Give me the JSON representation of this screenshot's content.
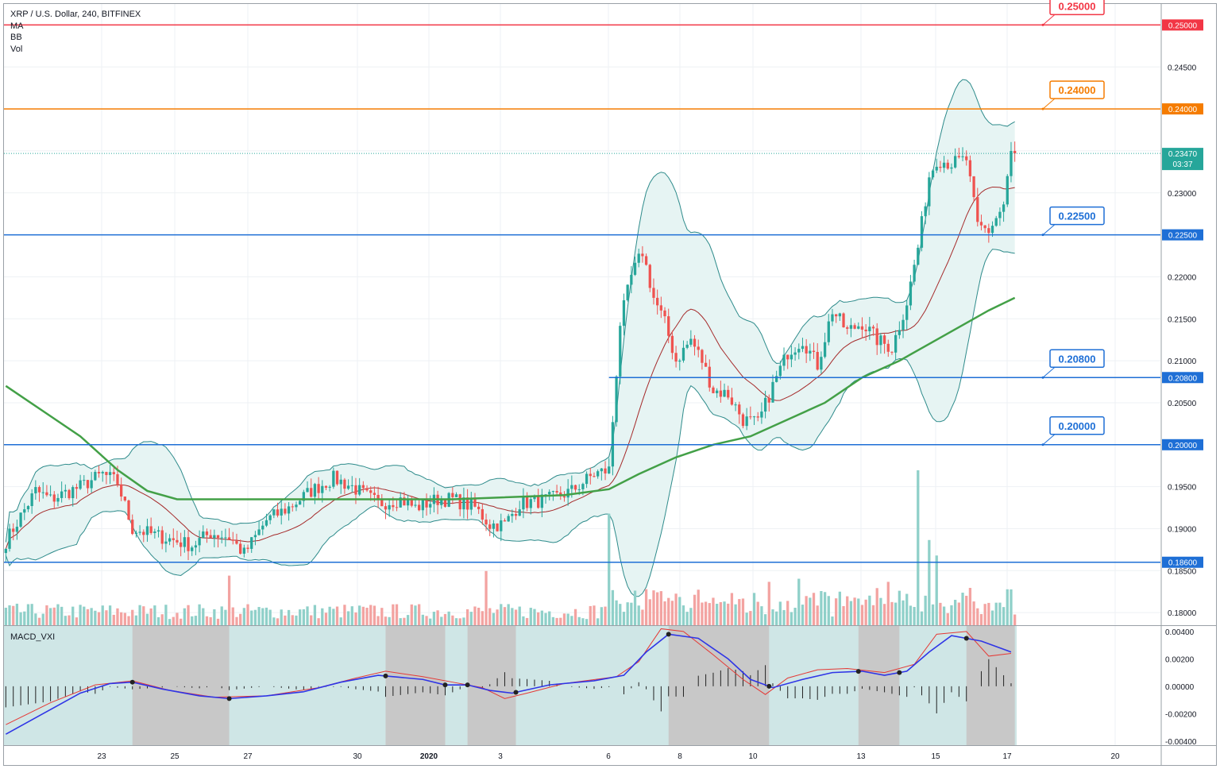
{
  "legend": {
    "symbol": "XRP / U.S. Dollar, 240, BITFINEX",
    "indicators": [
      "MA",
      "BB",
      "Vol"
    ]
  },
  "macd_label": "MACD_VXI",
  "colors": {
    "up": "#26a69a",
    "down": "#ef5350",
    "ma": "#43a047",
    "bb_fill": "#e6f4f3",
    "bb_line": "#2e8b8b",
    "bb_mid": "#a52a2a",
    "red_level": "#f23645",
    "orange_level": "#f57c00",
    "blue_level": "#1e6fd6",
    "macd_line": "#2f35e6",
    "signal_line": "#e53935",
    "macd_bg_teal": "#cfe6e6",
    "macd_bg_gray": "#c8c8c8"
  },
  "chart_data": {
    "type": "candlestick",
    "symbol": "XRP / U.S. Dollar",
    "timeframe": "240",
    "exchange": "BITFINEX",
    "x_tick_labels": [
      "23",
      "25",
      "27",
      "30",
      "2020",
      "3",
      "6",
      "8",
      "10",
      "13",
      "15",
      "17",
      "20"
    ],
    "price_axis_labels": [
      "0.24500",
      "0.23000",
      "0.22000",
      "0.21500",
      "0.21000",
      "0.20500",
      "0.19500",
      "0.19000",
      "0.18500",
      "0.18000"
    ],
    "ylim": [
      0.1785,
      0.2525
    ],
    "horizontal_levels": [
      {
        "value": 0.25,
        "label": "0.25000",
        "axis_label": "0.25000",
        "color": "red"
      },
      {
        "value": 0.24,
        "label": "0.24000",
        "axis_label": "0.24000",
        "color": "orange"
      },
      {
        "value": 0.225,
        "label": "0.22500",
        "axis_label": "0.22500",
        "color": "blue"
      },
      {
        "value": 0.208,
        "label": "0.20800",
        "axis_label": "0.20800",
        "color": "blue"
      },
      {
        "value": 0.2,
        "label": "0.20000",
        "axis_label": "0.20000",
        "color": "blue"
      },
      {
        "value": 0.186,
        "label": "",
        "axis_label": "0.18600",
        "color": "blue"
      }
    ],
    "last_price": {
      "value": "0.23470",
      "countdown": "03:37"
    },
    "price_keypoints": [
      [
        0,
        0.1885
      ],
      [
        8,
        0.1945
      ],
      [
        12,
        0.1935
      ],
      [
        20,
        0.195
      ],
      [
        26,
        0.1965
      ],
      [
        30,
        0.1955
      ],
      [
        34,
        0.19
      ],
      [
        42,
        0.189
      ],
      [
        50,
        0.188
      ],
      [
        55,
        0.1895
      ],
      [
        60,
        0.189
      ],
      [
        64,
        0.187
      ],
      [
        70,
        0.191
      ],
      [
        76,
        0.1925
      ],
      [
        82,
        0.1945
      ],
      [
        88,
        0.196
      ],
      [
        93,
        0.195
      ],
      [
        100,
        0.193
      ],
      [
        106,
        0.1935
      ],
      [
        110,
        0.1925
      ],
      [
        116,
        0.1935
      ],
      [
        120,
        0.1935
      ],
      [
        126,
        0.1925
      ],
      [
        130,
        0.1905
      ],
      [
        134,
        0.1905
      ],
      [
        138,
        0.193
      ],
      [
        146,
        0.1935
      ],
      [
        152,
        0.1945
      ],
      [
        158,
        0.1965
      ],
      [
        162,
        0.197
      ],
      [
        165,
        0.2145
      ],
      [
        168,
        0.22
      ],
      [
        171,
        0.223
      ],
      [
        174,
        0.2175
      ],
      [
        177,
        0.2145
      ],
      [
        180,
        0.21
      ],
      [
        184,
        0.2125
      ],
      [
        187,
        0.21
      ],
      [
        190,
        0.2065
      ],
      [
        194,
        0.206
      ],
      [
        198,
        0.203
      ],
      [
        202,
        0.2025
      ],
      [
        206,
        0.207
      ],
      [
        210,
        0.211
      ],
      [
        214,
        0.2125
      ],
      [
        218,
        0.2095
      ],
      [
        222,
        0.216
      ],
      [
        226,
        0.2135
      ],
      [
        230,
        0.2145
      ],
      [
        234,
        0.2125
      ],
      [
        238,
        0.2115
      ],
      [
        242,
        0.217
      ],
      [
        245,
        0.2235
      ],
      [
        248,
        0.232
      ],
      [
        250,
        0.234
      ],
      [
        254,
        0.2335
      ],
      [
        258,
        0.234
      ],
      [
        261,
        0.226
      ],
      [
        264,
        0.2255
      ],
      [
        268,
        0.2285
      ],
      [
        270,
        0.2347
      ]
    ],
    "ma_line": [
      [
        0,
        0.207
      ],
      [
        10,
        0.204
      ],
      [
        20,
        0.201
      ],
      [
        30,
        0.197
      ],
      [
        38,
        0.1945
      ],
      [
        46,
        0.1935
      ],
      [
        60,
        0.1935
      ],
      [
        80,
        0.1935
      ],
      [
        100,
        0.1935
      ],
      [
        120,
        0.1935
      ],
      [
        150,
        0.194
      ],
      [
        162,
        0.1947
      ],
      [
        170,
        0.1965
      ],
      [
        180,
        0.1985
      ],
      [
        190,
        0.2
      ],
      [
        200,
        0.201
      ],
      [
        210,
        0.203
      ],
      [
        220,
        0.205
      ],
      [
        230,
        0.208
      ],
      [
        240,
        0.21
      ],
      [
        250,
        0.2125
      ],
      [
        258,
        0.2145
      ],
      [
        264,
        0.216
      ],
      [
        271,
        0.2175
      ]
    ],
    "volume_spikes": [
      [
        162,
        0.72
      ],
      [
        245,
        1.0
      ],
      [
        250,
        0.45
      ],
      [
        248,
        0.55
      ],
      [
        129,
        0.35
      ],
      [
        60,
        0.32
      ],
      [
        237,
        0.28
      ],
      [
        205,
        0.28
      ],
      [
        213,
        0.3
      ]
    ],
    "macd": {
      "label": "MACD_VXI",
      "axis_labels": [
        "0.00400",
        "0.00200",
        "0.00000",
        "-0.00200",
        "-0.00400"
      ],
      "ylim": [
        -0.0043,
        0.0044
      ],
      "macd_line": [
        [
          0,
          -0.0035
        ],
        [
          10,
          -0.002
        ],
        [
          20,
          -0.0005
        ],
        [
          28,
          0.0002
        ],
        [
          34,
          0.0003
        ],
        [
          42,
          -0.0002
        ],
        [
          52,
          -0.0007
        ],
        [
          60,
          -0.0009
        ],
        [
          70,
          -0.0007
        ],
        [
          80,
          -0.0004
        ],
        [
          90,
          0.0003
        ],
        [
          100,
          0.0008
        ],
        [
          112,
          0.0005
        ],
        [
          118,
          0.0001
        ],
        [
          124,
          0.0001
        ],
        [
          130,
          -0.0003
        ],
        [
          136,
          -0.0005
        ],
        [
          146,
          0.0001
        ],
        [
          158,
          0.0004
        ],
        [
          166,
          0.0008
        ],
        [
          172,
          0.0025
        ],
        [
          178,
          0.0038
        ],
        [
          186,
          0.0035
        ],
        [
          194,
          0.002
        ],
        [
          200,
          0.0005
        ],
        [
          206,
          -0.0001
        ],
        [
          214,
          0.0005
        ],
        [
          222,
          0.001
        ],
        [
          230,
          0.0011
        ],
        [
          236,
          0.0008
        ],
        [
          242,
          0.0011
        ],
        [
          248,
          0.0025
        ],
        [
          254,
          0.0037
        ],
        [
          262,
          0.0033
        ],
        [
          270,
          0.0025
        ]
      ],
      "signal_line": [
        [
          0,
          -0.0028
        ],
        [
          12,
          -0.0012
        ],
        [
          24,
          0.0001
        ],
        [
          34,
          0.0004
        ],
        [
          44,
          -0.0003
        ],
        [
          56,
          -0.0008
        ],
        [
          70,
          -0.0007
        ],
        [
          84,
          -0.0001
        ],
        [
          94,
          0.0006
        ],
        [
          102,
          0.0011
        ],
        [
          112,
          0.0007
        ],
        [
          120,
          0.0003
        ],
        [
          128,
          -0.0001
        ],
        [
          134,
          -0.0009
        ],
        [
          140,
          -0.0005
        ],
        [
          150,
          0.0002
        ],
        [
          164,
          0.0007
        ],
        [
          170,
          0.0018
        ],
        [
          176,
          0.0042
        ],
        [
          182,
          0.004
        ],
        [
          190,
          0.0023
        ],
        [
          198,
          0.0005
        ],
        [
          204,
          -0.0006
        ],
        [
          210,
          0.0006
        ],
        [
          218,
          0.0012
        ],
        [
          226,
          0.0013
        ],
        [
          236,
          0.001
        ],
        [
          244,
          0.0016
        ],
        [
          250,
          0.0038
        ],
        [
          258,
          0.004
        ],
        [
          264,
          0.0022
        ],
        [
          270,
          0.0024
        ]
      ],
      "cross_points": [
        34,
        60,
        102,
        118,
        124,
        137,
        178,
        205,
        229,
        240,
        258
      ],
      "gray_zones": [
        [
          34,
          60
        ],
        [
          102,
          118
        ],
        [
          124,
          137
        ],
        [
          178,
          205
        ],
        [
          229,
          240
        ],
        [
          258,
          271
        ]
      ]
    }
  }
}
